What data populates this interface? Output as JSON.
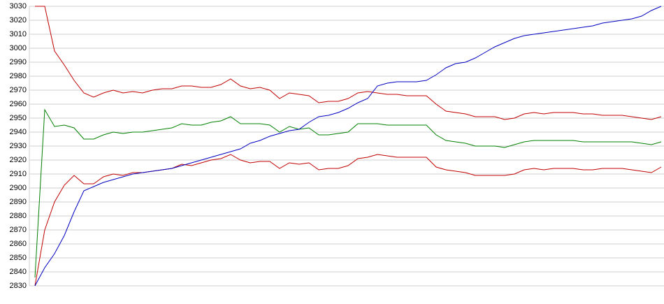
{
  "chart_data": {
    "type": "line",
    "categories": [
      null,
      null,
      null,
      null,
      null,
      null,
      null,
      null,
      null,
      null,
      null,
      null,
      null,
      null,
      null,
      null,
      null,
      null,
      null,
      null,
      null,
      null,
      null,
      null,
      null,
      null,
      null,
      null,
      null,
      null,
      null,
      null,
      null,
      null,
      null,
      null,
      null,
      null,
      null,
      null,
      null,
      null,
      null,
      null,
      null,
      null,
      null,
      null,
      null,
      null,
      null,
      null,
      null,
      null,
      null,
      null,
      null,
      null,
      null,
      null,
      null,
      null,
      null,
      null,
      null
    ],
    "series": [
      {
        "color": "#c00000",
        "values": [
          3030,
          3030,
          2998,
          2988,
          2977,
          2968,
          2965,
          2968,
          2970,
          2968,
          2969,
          2968,
          2970,
          2971,
          2971,
          2973,
          2973,
          2972,
          2972,
          2974,
          2978,
          2973,
          2971,
          2972,
          2970,
          2964,
          2968,
          2967,
          2966,
          2961,
          2962,
          2962,
          2964,
          2968,
          2969,
          2968,
          2967,
          2967,
          2966,
          2966,
          2966,
          2960,
          2955,
          2954,
          2953,
          2951,
          2951,
          2951,
          2949,
          2950,
          2953,
          2954,
          2953,
          2954,
          2954,
          2954,
          2953,
          2953,
          2952,
          2952,
          2952,
          2951,
          2950,
          2949,
          2951
        ]
      },
      {
        "color": "#008000",
        "values": [
          2836,
          2956,
          2944,
          2945,
          2943,
          2935,
          2935,
          2938,
          2940,
          2939,
          2940,
          2940,
          2941,
          2942,
          2943,
          2946,
          2945,
          2945,
          2947,
          2948,
          2951,
          2946,
          2946,
          2946,
          2945,
          2940,
          2944,
          2942,
          2943,
          2938,
          2938,
          2939,
          2940,
          2946,
          2946,
          2946,
          2945,
          2945,
          2945,
          2945,
          2945,
          2938,
          2934,
          2933,
          2932,
          2930,
          2930,
          2930,
          2929,
          2931,
          2933,
          2934,
          2934,
          2934,
          2934,
          2934,
          2933,
          2933,
          2933,
          2933,
          2933,
          2933,
          2932,
          2931,
          2933
        ]
      },
      {
        "color": "#c00000",
        "values": [
          2830,
          2870,
          2890,
          2902,
          2909,
          2903,
          2903,
          2908,
          2910,
          2909,
          2911,
          2911,
          2912,
          2913,
          2914,
          2917,
          2916,
          2918,
          2920,
          2921,
          2924,
          2920,
          2918,
          2919,
          2919,
          2914,
          2918,
          2917,
          2918,
          2913,
          2914,
          2914,
          2916,
          2921,
          2922,
          2924,
          2923,
          2922,
          2922,
          2922,
          2922,
          2915,
          2913,
          2912,
          2911,
          2909,
          2909,
          2909,
          2909,
          2910,
          2913,
          2914,
          2913,
          2914,
          2914,
          2914,
          2913,
          2913,
          2914,
          2914,
          2914,
          2913,
          2912,
          2911,
          2915
        ]
      },
      {
        "color": "#0000c0",
        "values": [
          2830,
          2843,
          2853,
          2866,
          2883,
          2898,
          2901,
          2904,
          2906,
          2908,
          2910,
          2911,
          2912,
          2913,
          2914,
          2916,
          2918,
          2920,
          2922,
          2924,
          2926,
          2928,
          2932,
          2934,
          2937,
          2939,
          2941,
          2942,
          2947,
          2951,
          2952,
          2954,
          2957,
          2961,
          2964,
          2973,
          2975,
          2976,
          2976,
          2976,
          2977,
          2981,
          2986,
          2989,
          2990,
          2993,
          2997,
          3001,
          3004,
          3007,
          3009,
          3010,
          3011,
          3012,
          3013,
          3014,
          3015,
          3016,
          3018,
          3019,
          3020,
          3021,
          3023,
          3027,
          3030
        ]
      }
    ],
    "ylim": [
      2830,
      3030
    ],
    "yticks": [
      2830,
      2840,
      2850,
      2860,
      2870,
      2880,
      2890,
      2900,
      2910,
      2920,
      2930,
      2940,
      2950,
      2960,
      2970,
      2980,
      2990,
      3000,
      3010,
      3020,
      3030
    ],
    "grid": true
  }
}
